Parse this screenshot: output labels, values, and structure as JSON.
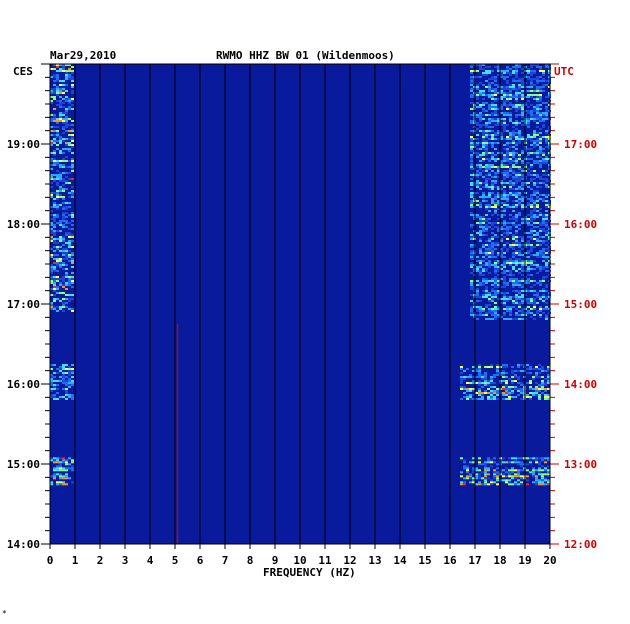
{
  "chart_data": {
    "type": "heatmap",
    "title": "RWMO HHZ BW 01 (Wildenmoos)",
    "date": "Mar29,2010",
    "xlabel": "FREQUENCY (HZ)",
    "x_ticks": [
      "0",
      "1",
      "2",
      "3",
      "4",
      "5",
      "6",
      "7",
      "8",
      "9",
      "10",
      "11",
      "12",
      "13",
      "14",
      "15",
      "16",
      "17",
      "18",
      "19",
      "20"
    ],
    "xlim": [
      0,
      20
    ],
    "left_timezone": "CES",
    "right_timezone": "UTC",
    "left_time_ticks": [
      "19:00",
      "18:00",
      "17:00",
      "16:00",
      "15:00",
      "14:00"
    ],
    "right_time_ticks": [
      "17:00",
      "16:00",
      "15:00",
      "14:00",
      "13:00",
      "12:00"
    ],
    "time_range_local": [
      "14:00",
      "20:00"
    ],
    "grid": true,
    "colors": {
      "background": "#0a1a9c",
      "left_axis_text": "#000000",
      "right_axis_text": "#cc0000",
      "line5hz": "#8b1a1a"
    },
    "activity_bands": [
      {
        "name": "low-frequency",
        "freq_hz": [
          0,
          0.9
        ],
        "time_local": [
          "16:55",
          "20:00"
        ],
        "intensity": "high"
      },
      {
        "name": "high-frequency",
        "freq_hz": [
          16.8,
          20
        ],
        "time_local": [
          "16:48",
          "20:00"
        ],
        "intensity": "medium"
      },
      {
        "name": "high-frequency",
        "freq_hz": [
          16.4,
          20
        ],
        "time_local": [
          "15:48",
          "16:15"
        ],
        "intensity": "high"
      },
      {
        "name": "high-frequency",
        "freq_hz": [
          16.4,
          20
        ],
        "time_local": [
          "14:45",
          "15:05"
        ],
        "intensity": "high"
      },
      {
        "name": "low-frequency",
        "freq_hz": [
          0,
          0.9
        ],
        "time_local": [
          "15:48",
          "16:15"
        ],
        "intensity": "high"
      },
      {
        "name": "low-frequency",
        "freq_hz": [
          0,
          0.9
        ],
        "time_local": [
          "14:45",
          "15:05"
        ],
        "intensity": "high"
      }
    ],
    "constant_line_hz": 5.1
  },
  "footer_mark": "*"
}
